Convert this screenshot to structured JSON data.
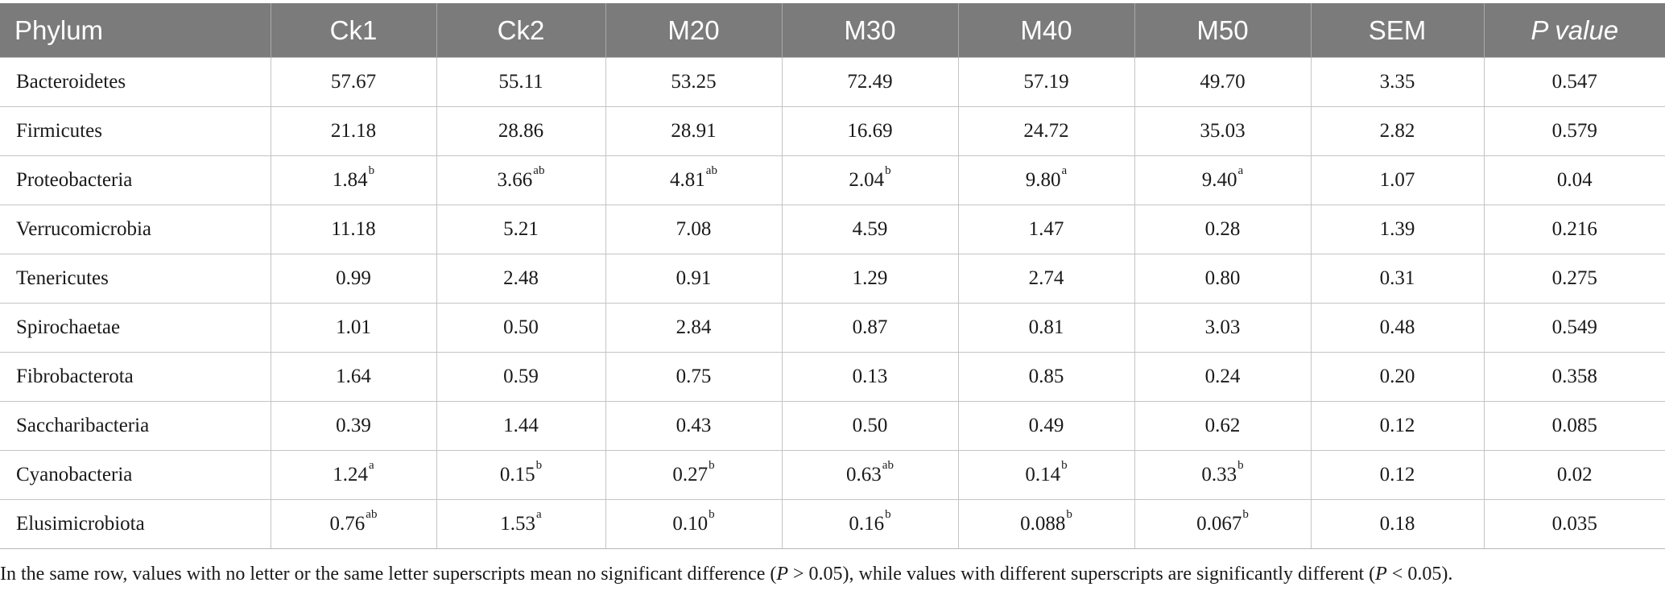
{
  "table": {
    "headers": [
      "Phylum",
      "Ck1",
      "Ck2",
      "M20",
      "M30",
      "M40",
      "M50",
      "SEM",
      "P value"
    ],
    "rows": [
      {
        "phylum": "Bacteroidetes",
        "cells": [
          {
            "v": "57.67",
            "s": ""
          },
          {
            "v": "55.11",
            "s": ""
          },
          {
            "v": "53.25",
            "s": ""
          },
          {
            "v": "72.49",
            "s": ""
          },
          {
            "v": "57.19",
            "s": ""
          },
          {
            "v": "49.70",
            "s": ""
          },
          {
            "v": "3.35",
            "s": ""
          },
          {
            "v": "0.547",
            "s": ""
          }
        ]
      },
      {
        "phylum": "Firmicutes",
        "cells": [
          {
            "v": "21.18",
            "s": ""
          },
          {
            "v": "28.86",
            "s": ""
          },
          {
            "v": "28.91",
            "s": ""
          },
          {
            "v": "16.69",
            "s": ""
          },
          {
            "v": "24.72",
            "s": ""
          },
          {
            "v": "35.03",
            "s": ""
          },
          {
            "v": "2.82",
            "s": ""
          },
          {
            "v": "0.579",
            "s": ""
          }
        ]
      },
      {
        "phylum": "Proteobacteria",
        "cells": [
          {
            "v": "1.84",
            "s": "b"
          },
          {
            "v": "3.66",
            "s": "ab"
          },
          {
            "v": "4.81",
            "s": "ab"
          },
          {
            "v": "2.04",
            "s": "b"
          },
          {
            "v": "9.80",
            "s": "a"
          },
          {
            "v": "9.40",
            "s": "a"
          },
          {
            "v": "1.07",
            "s": ""
          },
          {
            "v": "0.04",
            "s": ""
          }
        ]
      },
      {
        "phylum": "Verrucomicrobia",
        "cells": [
          {
            "v": "11.18",
            "s": ""
          },
          {
            "v": "5.21",
            "s": ""
          },
          {
            "v": "7.08",
            "s": ""
          },
          {
            "v": "4.59",
            "s": ""
          },
          {
            "v": "1.47",
            "s": ""
          },
          {
            "v": "0.28",
            "s": ""
          },
          {
            "v": "1.39",
            "s": ""
          },
          {
            "v": "0.216",
            "s": ""
          }
        ]
      },
      {
        "phylum": "Tenericutes",
        "cells": [
          {
            "v": "0.99",
            "s": ""
          },
          {
            "v": "2.48",
            "s": ""
          },
          {
            "v": "0.91",
            "s": ""
          },
          {
            "v": "1.29",
            "s": ""
          },
          {
            "v": "2.74",
            "s": ""
          },
          {
            "v": "0.80",
            "s": ""
          },
          {
            "v": "0.31",
            "s": ""
          },
          {
            "v": "0.275",
            "s": ""
          }
        ]
      },
      {
        "phylum": "Spirochaetae",
        "cells": [
          {
            "v": "1.01",
            "s": ""
          },
          {
            "v": "0.50",
            "s": ""
          },
          {
            "v": "2.84",
            "s": ""
          },
          {
            "v": "0.87",
            "s": ""
          },
          {
            "v": "0.81",
            "s": ""
          },
          {
            "v": "3.03",
            "s": ""
          },
          {
            "v": "0.48",
            "s": ""
          },
          {
            "v": "0.549",
            "s": ""
          }
        ]
      },
      {
        "phylum": "Fibrobacterota",
        "cells": [
          {
            "v": "1.64",
            "s": ""
          },
          {
            "v": "0.59",
            "s": ""
          },
          {
            "v": "0.75",
            "s": ""
          },
          {
            "v": "0.13",
            "s": ""
          },
          {
            "v": "0.85",
            "s": ""
          },
          {
            "v": "0.24",
            "s": ""
          },
          {
            "v": "0.20",
            "s": ""
          },
          {
            "v": "0.358",
            "s": ""
          }
        ]
      },
      {
        "phylum": "Saccharibacteria",
        "cells": [
          {
            "v": "0.39",
            "s": ""
          },
          {
            "v": "1.44",
            "s": ""
          },
          {
            "v": "0.43",
            "s": ""
          },
          {
            "v": "0.50",
            "s": ""
          },
          {
            "v": "0.49",
            "s": ""
          },
          {
            "v": "0.62",
            "s": ""
          },
          {
            "v": "0.12",
            "s": ""
          },
          {
            "v": "0.085",
            "s": ""
          }
        ]
      },
      {
        "phylum": "Cyanobacteria",
        "cells": [
          {
            "v": "1.24",
            "s": "a"
          },
          {
            "v": "0.15",
            "s": "b"
          },
          {
            "v": "0.27",
            "s": "b"
          },
          {
            "v": "0.63",
            "s": "ab"
          },
          {
            "v": "0.14",
            "s": "b"
          },
          {
            "v": "0.33",
            "s": "b"
          },
          {
            "v": "0.12",
            "s": ""
          },
          {
            "v": "0.02",
            "s": ""
          }
        ]
      },
      {
        "phylum": "Elusimicrobiota",
        "cells": [
          {
            "v": "0.76",
            "s": "ab"
          },
          {
            "v": "1.53",
            "s": "a"
          },
          {
            "v": "0.10",
            "s": "b"
          },
          {
            "v": "0.16",
            "s": "b"
          },
          {
            "v": "0.088",
            "s": "b"
          },
          {
            "v": "0.067",
            "s": "b"
          },
          {
            "v": "0.18",
            "s": ""
          },
          {
            "v": "0.035",
            "s": ""
          }
        ]
      }
    ]
  },
  "footnote": {
    "part1": "In the same row, values with no letter or the same letter superscripts mean no significant difference (",
    "p1": "P",
    "part2": " > 0.05), while values with different superscripts are significantly different (",
    "p2": "P",
    "part3": " < 0.05)."
  },
  "colors": {
    "header_bg": "#7b7b7b",
    "header_text": "#ffffff",
    "grid_line": "#c4c4c4",
    "body_text": "#1a1a1a"
  }
}
